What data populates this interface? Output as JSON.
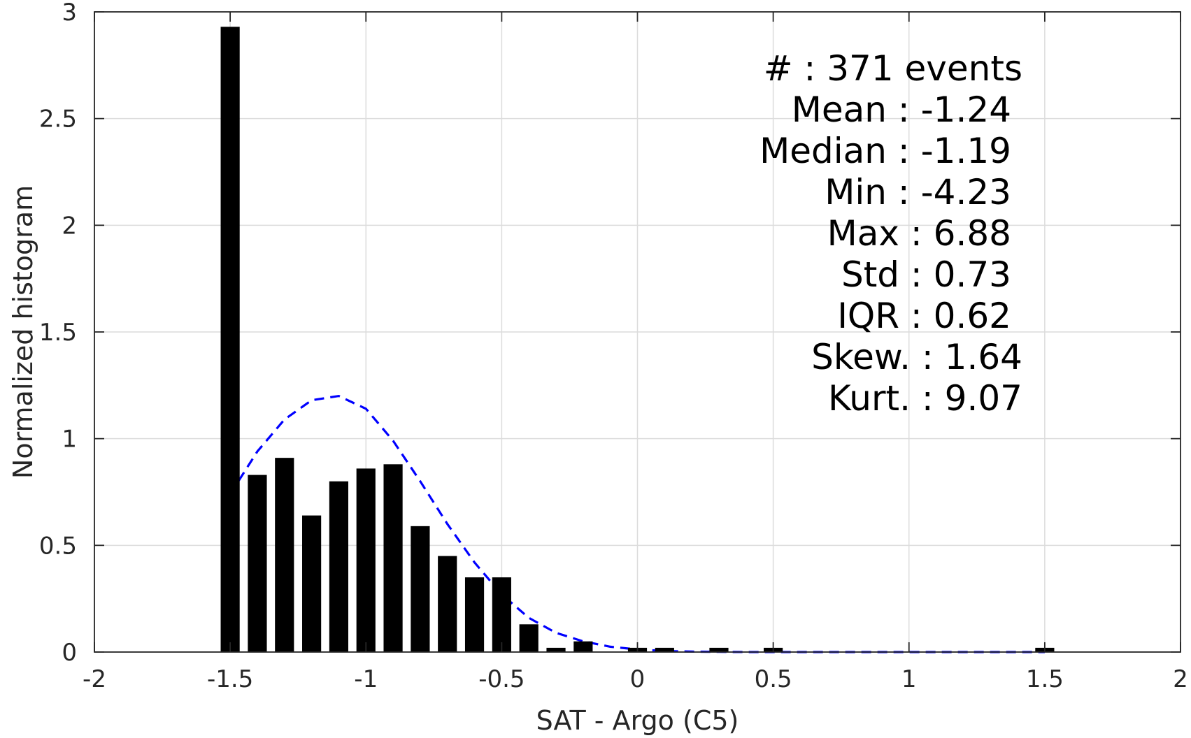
{
  "chart_data": {
    "type": "bar",
    "title": "",
    "xlabel": "SAT - Argo (C5)",
    "ylabel": "Normalized histogram",
    "xlim": [
      -2,
      2
    ],
    "ylim": [
      0,
      3
    ],
    "xticks": [
      -2,
      -1.5,
      -1,
      -0.5,
      0,
      0.5,
      1,
      1.5,
      2
    ],
    "xtick_labels": [
      "-2",
      "-1.5",
      "-1",
      "-0.5",
      "0",
      "0.5",
      "1",
      "1.5",
      "2"
    ],
    "yticks": [
      0,
      0.5,
      1,
      1.5,
      2,
      2.5,
      3
    ],
    "ytick_labels": [
      "0",
      "0.5",
      "1",
      "1.5",
      "2",
      "2.5",
      "3"
    ],
    "grid": true,
    "bar_width": 0.07,
    "bars": {
      "x": [
        -1.5,
        -1.4,
        -1.3,
        -1.2,
        -1.1,
        -1.0,
        -0.9,
        -0.8,
        -0.7,
        -0.6,
        -0.5,
        -0.4,
        -0.3,
        -0.2,
        0.0,
        0.1,
        0.3,
        0.5,
        1.5
      ],
      "values": [
        2.93,
        0.83,
        0.91,
        0.64,
        0.8,
        0.86,
        0.88,
        0.59,
        0.45,
        0.35,
        0.35,
        0.13,
        0.02,
        0.05,
        0.02,
        0.02,
        0.02,
        0.02,
        0.02
      ],
      "color": "#000000"
    },
    "fit_curve": {
      "style": "dashed",
      "color": "#0000ff",
      "x": [
        -1.5,
        -1.4,
        -1.3,
        -1.2,
        -1.1,
        -1.0,
        -0.9,
        -0.8,
        -0.7,
        -0.6,
        -0.5,
        -0.4,
        -0.3,
        -0.2,
        -0.1,
        0.0,
        0.1,
        0.2,
        0.3,
        0.4,
        0.5,
        0.7,
        1.0,
        1.5
      ],
      "y": [
        0.74,
        0.94,
        1.09,
        1.18,
        1.2,
        1.14,
        0.99,
        0.8,
        0.6,
        0.42,
        0.27,
        0.16,
        0.09,
        0.05,
        0.025,
        0.012,
        0.005,
        0.002,
        0.001,
        0.0,
        0.0,
        0.0,
        0.0,
        0.0
      ]
    },
    "annotation_lines": [
      "#  : 371 events",
      "Mean : -1.24",
      "Median : -1.19",
      "Min : -4.23",
      "Max : 6.88",
      "Std : 0.73",
      "IQR : 0.62",
      "Skew. : 1.64",
      "Kurt. : 9.07"
    ]
  }
}
